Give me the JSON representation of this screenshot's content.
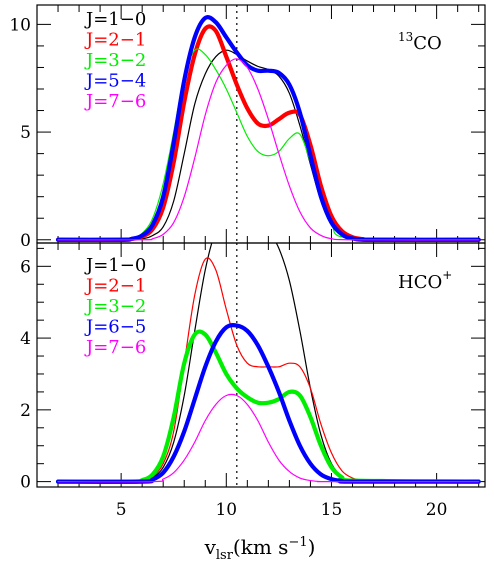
{
  "chart_data": {
    "type": "line",
    "x_axis": {
      "label_main": "v",
      "label_sub": "lsr",
      "label_unit_open": "(km s",
      "label_unit_exp": "−1",
      "label_unit_close": ")",
      "xlim": [
        1,
        22.3
      ],
      "ticks": [
        5,
        10,
        15,
        20
      ],
      "tick_labels": [
        "5",
        "10",
        "15",
        "20"
      ]
    },
    "reference_line_x": 10.5,
    "panels": [
      {
        "molecule_main": "CO",
        "molecule_sup": "13",
        "molecule_sup_position": "before",
        "ylim": [
          -0.15,
          10.9
        ],
        "y_ticks": [
          0,
          5,
          10
        ],
        "y_tick_labels": [
          "0",
          "5",
          "10"
        ],
        "series": [
          {
            "name": "J=1−0",
            "color": "#000000",
            "width": 1.2,
            "x": [
              2,
              5,
              6,
              6.5,
              7,
              7.5,
              8,
              8.5,
              9,
              9.5,
              10,
              10.5,
              11,
              11.5,
              12,
              12.5,
              13,
              13.5,
              14,
              14.5,
              15,
              15.5,
              16,
              17,
              22
            ],
            "y": [
              0,
              0,
              0.05,
              0.2,
              0.6,
              1.8,
              4,
              6.3,
              7.7,
              8.5,
              8.8,
              8.6,
              8.3,
              8.05,
              7.9,
              7.6,
              6.8,
              5.3,
              3.5,
              1.8,
              0.7,
              0.25,
              0.08,
              0,
              0
            ]
          },
          {
            "name": "J=2−1",
            "color": "#ff0000",
            "width": 4.2,
            "x": [
              2,
              5,
              5.5,
              6,
              6.5,
              7,
              7.5,
              8,
              8.5,
              9,
              9.5,
              10,
              10.5,
              11,
              11.5,
              12,
              12.5,
              13,
              13.5,
              14,
              14.5,
              15,
              15.5,
              16,
              16.5,
              17,
              22
            ],
            "y": [
              0,
              0,
              0.04,
              0.15,
              0.5,
              1.5,
              3.6,
              6.4,
              8.6,
              9.8,
              9.7,
              8.5,
              7.2,
              6.1,
              5.4,
              5.3,
              5.6,
              5.9,
              5.8,
              4.4,
              2.5,
              1.1,
              0.4,
              0.12,
              0.03,
              0,
              0
            ]
          },
          {
            "name": "J=3−2",
            "color": "#00ee00",
            "width": 1.2,
            "x": [
              2,
              5,
              5.5,
              6,
              6.5,
              7,
              7.5,
              8,
              8.5,
              9,
              9.5,
              10,
              10.5,
              11,
              11.5,
              12,
              12.5,
              13,
              13.5,
              14,
              14.5,
              15,
              16,
              22
            ],
            "y": [
              0,
              0,
              0.05,
              0.3,
              1,
              2.6,
              5,
              7.6,
              8.8,
              8.6,
              7.9,
              7,
              5.9,
              4.8,
              4.1,
              3.9,
              4.1,
              4.7,
              4.9,
              3.6,
              1.9,
              0.7,
              0.05,
              0
            ]
          },
          {
            "name": "J=5−4",
            "color": "#0000ff",
            "width": 4.2,
            "x": [
              2,
              5,
              5.5,
              6,
              6.5,
              7,
              7.5,
              8,
              8.5,
              9,
              9.5,
              10,
              10.5,
              11,
              11.5,
              12,
              12.5,
              13,
              13.5,
              14,
              14.5,
              15,
              15.5,
              16,
              17,
              22
            ],
            "y": [
              0,
              0,
              0.04,
              0.2,
              0.7,
              2,
              4.5,
              7.4,
              9.4,
              10.3,
              10.1,
              9.4,
              8.7,
              8.1,
              7.85,
              7.85,
              7.75,
              7.2,
              5.9,
              3.9,
              2,
              0.8,
              0.25,
              0.06,
              0,
              0
            ]
          },
          {
            "name": "J=7−6",
            "color": "#ff00ff",
            "width": 1.2,
            "x": [
              2,
              6,
              6.5,
              7,
              7.5,
              8,
              8.5,
              9,
              9.5,
              10,
              10.5,
              11,
              11.5,
              12,
              12.5,
              13,
              13.5,
              14,
              14.5,
              15,
              16,
              22
            ],
            "y": [
              0,
              0,
              0.05,
              0.25,
              0.8,
              2,
              3.8,
              5.8,
              7.3,
              8.1,
              8.4,
              8,
              7,
              5.6,
              4,
              2.5,
              1.3,
              0.55,
              0.2,
              0.05,
              0,
              0
            ]
          }
        ]
      },
      {
        "molecule_main": "HCO",
        "molecule_sup": "+",
        "molecule_sup_position": "after",
        "ylim": [
          -0.15,
          6.65
        ],
        "y_ticks": [
          0,
          2,
          4,
          6
        ],
        "y_tick_labels": [
          "0",
          "2",
          "4",
          "6"
        ],
        "series": [
          {
            "name": "J=1−0",
            "color": "#000000",
            "width": 1.2,
            "x": [
              2,
              5.5,
              6,
              6.5,
              7,
              7.5,
              8,
              8.5,
              9,
              9.5,
              10,
              10.5,
              11,
              11.5,
              12,
              12.5,
              13,
              13.5,
              14,
              14.5,
              15,
              15.5,
              16,
              22
            ],
            "y": [
              0,
              0,
              0.03,
              0.12,
              0.4,
              1.1,
              2.4,
              4.2,
              5.9,
              7,
              7.5,
              7.6,
              7.5,
              7.3,
              7,
              6.5,
              5.6,
              4.2,
              2.6,
              1.3,
              0.5,
              0.15,
              0.03,
              0
            ]
          },
          {
            "name": "J=2−1",
            "color": "#ff0000",
            "width": 1.2,
            "x": [
              2,
              5.5,
              6,
              6.5,
              7,
              7.5,
              8,
              8.5,
              9,
              9.5,
              10,
              10.5,
              11,
              11.5,
              12,
              12.5,
              13,
              13.5,
              14,
              14.5,
              15,
              15.5,
              16,
              16.5,
              17,
              22
            ],
            "y": [
              0,
              0,
              0.03,
              0.15,
              0.5,
              1.4,
              3.3,
              5.2,
              6.2,
              5.9,
              4.8,
              3.8,
              3.3,
              3.2,
              3.2,
              3.2,
              3.3,
              3.2,
              2.6,
              1.6,
              0.8,
              0.3,
              0.1,
              0.03,
              0,
              0
            ]
          },
          {
            "name": "J=3−2",
            "color": "#00ee00",
            "width": 4.2,
            "x": [
              2,
              5.5,
              6,
              6.5,
              7,
              7.5,
              8,
              8.5,
              9,
              9.5,
              10,
              10.5,
              11,
              11.5,
              12,
              12.5,
              13,
              13.5,
              14,
              14.5,
              15,
              15.5,
              16,
              22
            ],
            "y": [
              0,
              0,
              0.04,
              0.2,
              0.7,
              1.8,
              3.3,
              4.1,
              4.1,
              3.6,
              3,
              2.6,
              2.35,
              2.2,
              2.2,
              2.3,
              2.5,
              2.4,
              1.8,
              1,
              0.4,
              0.12,
              0.03,
              0
            ]
          },
          {
            "name": "J=6−5",
            "color": "#0000ff",
            "width": 4.2,
            "x": [
              2,
              6,
              6.5,
              7,
              7.5,
              8,
              8.5,
              9,
              9.5,
              10,
              10.5,
              11,
              11.5,
              12,
              12.5,
              13,
              13.5,
              14,
              14.5,
              15,
              15.5,
              16,
              22
            ],
            "y": [
              0,
              0,
              0.06,
              0.25,
              0.7,
              1.4,
              2.3,
              3.2,
              3.9,
              4.3,
              4.35,
              4.2,
              3.8,
              3.2,
              2.5,
              1.7,
              1,
              0.5,
              0.2,
              0.07,
              0.02,
              0,
              0
            ]
          },
          {
            "name": "J=7−6",
            "color": "#ff00ff",
            "width": 1.2,
            "x": [
              2,
              6.5,
              7,
              7.5,
              8,
              8.5,
              9,
              9.5,
              10,
              10.5,
              11,
              11.5,
              12,
              12.5,
              13,
              13.5,
              14,
              14.5,
              15,
              22
            ],
            "y": [
              0,
              0,
              0.07,
              0.25,
              0.6,
              1.1,
              1.7,
              2.15,
              2.4,
              2.4,
              2.15,
              1.7,
              1.1,
              0.6,
              0.28,
              0.1,
              0.03,
              0,
              0,
              0
            ]
          }
        ]
      }
    ]
  }
}
